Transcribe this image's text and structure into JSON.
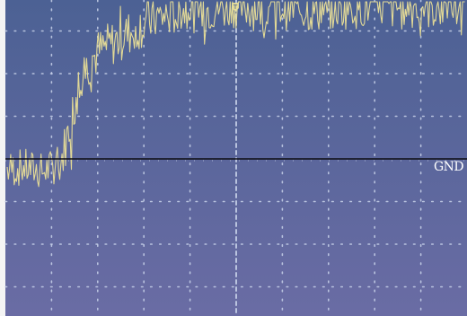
{
  "chart_data": {
    "type": "line",
    "title": "",
    "xlabel": "",
    "ylabel": "",
    "grid": true,
    "divisions": {
      "x": 10,
      "y": 8
    },
    "xlim": [
      0,
      10
    ],
    "ylim": [
      -4,
      4
    ],
    "ground_level": 0,
    "series": [
      {
        "color": "#eadf96",
        "x": [
          0,
          0.4,
          0.8,
          1.2,
          1.4,
          1.6,
          1.8,
          2.0,
          2.3,
          2.6,
          2.9,
          3.2,
          3.5,
          3.8,
          4.2,
          4.6,
          5.0,
          5.4,
          5.8,
          6.2,
          6.6,
          7.0,
          7.5,
          8.0,
          8.5,
          9.0,
          9.5,
          10.0
        ],
        "y": [
          -0.25,
          -0.2,
          -0.3,
          -0.1,
          0.8,
          1.8,
          2.2,
          2.5,
          2.7,
          2.9,
          3.1,
          3.3,
          3.35,
          3.5,
          3.5,
          3.55,
          3.6,
          3.55,
          3.6,
          3.55,
          3.5,
          3.55,
          3.6,
          3.6,
          3.55,
          3.6,
          3.55,
          3.4
        ]
      }
    ],
    "annotations": [
      {
        "text": "GND",
        "y": 0
      }
    ]
  },
  "colors": {
    "screen_top": "#4c6194",
    "screen_bottom": "#6a6ca4",
    "grid": "#c9d3ea",
    "trace": "#eadf96",
    "gnd_line": "#0d0d12"
  }
}
